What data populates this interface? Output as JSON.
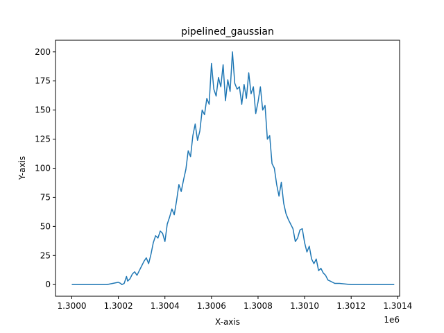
{
  "chart_data": {
    "type": "line",
    "title": "pipelined_gaussian",
    "xlabel": "X-axis",
    "ylabel": "Y-axis",
    "x_offset_label": "1e6",
    "xlim": [
      1299930,
      1301408
    ],
    "ylim": [
      -10,
      210
    ],
    "x_ticks": [
      1300000,
      1300200,
      1300400,
      1300600,
      1300800,
      1301000,
      1301200,
      1301400
    ],
    "x_tick_labels": [
      "1.3000",
      "1.3002",
      "1.3004",
      "1.3006",
      "1.3008",
      "1.3010",
      "1.3012",
      "1.3014"
    ],
    "y_ticks": [
      0,
      25,
      50,
      75,
      100,
      125,
      150,
      175,
      200
    ],
    "y_tick_labels": [
      "0",
      "25",
      "50",
      "75",
      "100",
      "125",
      "150",
      "175",
      "200"
    ],
    "grid": false,
    "series": [
      {
        "color": "#1f77b4",
        "x": [
          1300000,
          1300150,
          1300200,
          1300210,
          1300215,
          1300225,
          1300235,
          1300240,
          1300250,
          1300260,
          1300270,
          1300280,
          1300290,
          1300300,
          1300310,
          1300320,
          1300330,
          1300340,
          1300350,
          1300360,
          1300370,
          1300380,
          1300390,
          1300400,
          1300410,
          1300420,
          1300430,
          1300440,
          1300450,
          1300460,
          1300470,
          1300480,
          1300490,
          1300500,
          1300510,
          1300520,
          1300530,
          1300540,
          1300550,
          1300560,
          1300570,
          1300580,
          1300590,
          1300600,
          1300610,
          1300620,
          1300630,
          1300640,
          1300650,
          1300660,
          1300670,
          1300680,
          1300690,
          1300700,
          1300710,
          1300720,
          1300730,
          1300740,
          1300750,
          1300760,
          1300770,
          1300780,
          1300790,
          1300800,
          1300810,
          1300820,
          1300830,
          1300840,
          1300850,
          1300860,
          1300870,
          1300880,
          1300890,
          1300900,
          1300910,
          1300920,
          1300930,
          1300940,
          1300950,
          1300960,
          1300970,
          1300980,
          1300990,
          1301000,
          1301010,
          1301020,
          1301030,
          1301040,
          1301050,
          1301060,
          1301070,
          1301080,
          1301090,
          1301100,
          1301110,
          1301120,
          1301130,
          1301150,
          1301200,
          1301385
        ],
        "y": [
          0,
          0,
          2,
          1,
          0,
          1,
          7,
          3,
          5,
          9,
          11,
          8,
          12,
          16,
          20,
          23,
          18,
          26,
          36,
          42,
          40,
          46,
          44,
          37,
          52,
          58,
          65,
          60,
          72,
          86,
          80,
          90,
          99,
          115,
          110,
          128,
          138,
          124,
          132,
          150,
          146,
          160,
          155,
          190,
          168,
          162,
          178,
          170,
          189,
          158,
          176,
          166,
          200,
          173,
          168,
          170,
          155,
          172,
          160,
          182,
          164,
          170,
          147,
          157,
          170,
          150,
          154,
          125,
          128,
          104,
          100,
          86,
          76,
          88,
          70,
          61,
          56,
          52,
          48,
          37,
          40,
          47,
          48,
          36,
          28,
          33,
          22,
          18,
          22,
          12,
          14,
          10,
          8,
          4,
          3,
          2,
          1,
          1,
          0,
          0
        ]
      }
    ]
  }
}
